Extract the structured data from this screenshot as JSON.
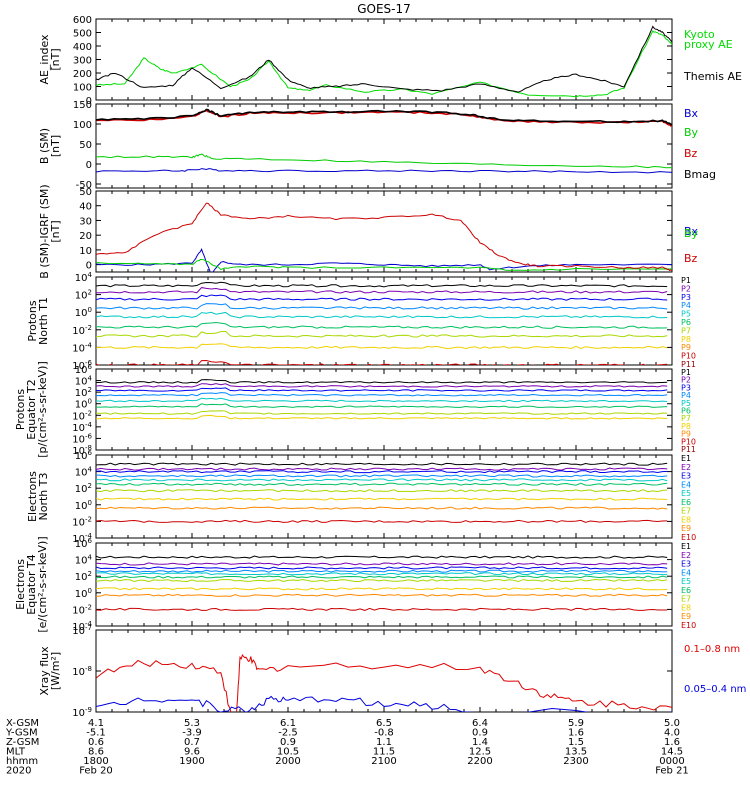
{
  "title": "GOES-17",
  "time_axis": {
    "hhmm_ticks": [
      "1800",
      "1900",
      "2000",
      "2100",
      "2200",
      "2300",
      "0000"
    ],
    "hours": [
      18,
      19,
      20,
      21,
      22,
      23,
      24
    ],
    "date_start": "Feb 20",
    "date_end": "Feb 21",
    "year": "2020",
    "rows": [
      {
        "label": "X-GSM",
        "values": [
          "4.1",
          "5.3",
          "6.1",
          "6.5",
          "6.4",
          "5.9",
          "5.0"
        ]
      },
      {
        "label": "Y-GSM",
        "values": [
          "-5.1",
          "-3.9",
          "-2.5",
          "-0.8",
          "0.9",
          "1.6",
          "4.0"
        ]
      },
      {
        "label": "Z-GSM",
        "values": [
          "0.6",
          "0.7",
          "0.9",
          "1.1",
          "1.4",
          "1.5",
          "1.6"
        ]
      },
      {
        "label": "MLT",
        "values": [
          "8.6",
          "9.6",
          "10.5",
          "11.5",
          "12.5",
          "13.5",
          "14.5"
        ]
      },
      {
        "label": "hhmm",
        "values": [
          "1800",
          "1900",
          "2000",
          "2100",
          "2200",
          "2300",
          "0000"
        ]
      },
      {
        "label": "2020",
        "values": [
          "Feb 20",
          "",
          "",
          "",
          "",
          "",
          "Feb 21"
        ]
      }
    ]
  },
  "chart_data": [
    {
      "type": "line",
      "ylabel": "AE_index [nT]",
      "ylim": [
        0,
        600
      ],
      "yticks": [
        "0",
        "100",
        "200",
        "300",
        "400",
        "500",
        "600"
      ],
      "series": [
        {
          "name": "Kyoto proxy AE",
          "color": "#00dd00",
          "x": [
            18,
            18.3,
            18.5,
            18.67,
            18.8,
            19.1,
            19.4,
            19.6,
            19.8,
            20.0,
            20.2,
            20.4,
            20.8,
            21.2,
            21.5,
            22.0,
            22.5,
            23.0,
            23.3,
            23.5,
            23.8,
            23.9,
            24.0
          ],
          "y": [
            110,
            120,
            310,
            230,
            200,
            260,
            100,
            150,
            290,
            90,
            70,
            110,
            60,
            80,
            45,
            130,
            40,
            30,
            40,
            90,
            510,
            480,
            410
          ]
        },
        {
          "name": "Themis AE",
          "color": "#000000",
          "x": [
            18,
            18.2,
            18.5,
            18.8,
            19.0,
            19.3,
            19.6,
            19.8,
            20.0,
            20.2,
            20.5,
            20.8,
            21.2,
            21.6,
            22.0,
            22.4,
            22.7,
            23.0,
            23.3,
            23.5,
            23.8,
            23.9,
            24.0
          ],
          "y": [
            150,
            200,
            90,
            110,
            240,
            90,
            170,
            300,
            150,
            90,
            100,
            120,
            80,
            70,
            120,
            60,
            150,
            190,
            140,
            100,
            540,
            500,
            430
          ]
        }
      ],
      "legend": [
        "Kyoto",
        "proxy AE",
        "Themis AE"
      ]
    },
    {
      "type": "line",
      "ylabel": "B (SM) [nT]",
      "ylim": [
        -60,
        150
      ],
      "yticks": [
        "-50",
        "0",
        "50",
        "100",
        "150"
      ],
      "series": [
        {
          "name": "Bx",
          "color": "#0000cc",
          "x": [
            18,
            18.6,
            18.9,
            19.1,
            19.3,
            19.8,
            20.6,
            21.5,
            22.3,
            23.0,
            24.0
          ],
          "y": [
            -18,
            -17,
            -17,
            -12,
            -16,
            -17,
            -17,
            -17,
            -18,
            -19,
            -21
          ]
        },
        {
          "name": "By",
          "color": "#00cc00",
          "x": [
            18,
            18.6,
            19.0,
            19.1,
            19.2,
            19.6,
            20.5,
            21.5,
            22.5,
            23.5,
            24.0
          ],
          "y": [
            18,
            18,
            17,
            24,
            14,
            13,
            8,
            2,
            -3,
            -6,
            -9
          ]
        },
        {
          "name": "Bz",
          "color": "#cc0000",
          "x": [
            18,
            18.5,
            19.0,
            19.15,
            19.3,
            19.6,
            20.0,
            20.5,
            21.0,
            21.5,
            21.9,
            22.1,
            22.5,
            23.0,
            23.5,
            23.9,
            24.0
          ],
          "y": [
            110,
            110,
            118,
            134,
            118,
            127,
            128,
            128,
            130,
            128,
            122,
            112,
            106,
            104,
            104,
            106,
            96
          ]
        },
        {
          "name": "Bmag",
          "color": "#000000",
          "x": [
            18,
            18.5,
            19.0,
            19.15,
            19.3,
            19.6,
            20.0,
            20.5,
            21.0,
            21.5,
            21.9,
            22.1,
            22.5,
            23.0,
            23.5,
            23.9,
            24.0
          ],
          "y": [
            112,
            112,
            120,
            136,
            120,
            129,
            130,
            130,
            132,
            130,
            124,
            114,
            108,
            106,
            106,
            108,
            98
          ]
        }
      ],
      "legend": [
        "Bx",
        "By",
        "Bz",
        "Bmag"
      ]
    },
    {
      "type": "line",
      "ylabel": "B (SM)-IGRF (SM) [nT]",
      "ylim": [
        -5,
        50
      ],
      "yticks": [
        "0",
        "10",
        "20",
        "30",
        "40",
        "50"
      ],
      "series": [
        {
          "name": "Bx",
          "color": "#0000cc",
          "x": [
            18,
            18.5,
            19.0,
            19.1,
            19.2,
            19.3,
            19.5,
            20.0,
            20.5,
            21.0,
            21.5,
            22.0,
            22.1,
            22.5,
            23.0,
            24.0
          ],
          "y": [
            0,
            0,
            1,
            10,
            -7,
            2,
            0,
            0,
            1,
            0,
            -1,
            0,
            -3,
            -1,
            0,
            0
          ]
        },
        {
          "name": "By",
          "color": "#00cc00",
          "x": [
            18,
            18.5,
            19.0,
            19.1,
            19.3,
            19.6,
            20.0,
            21.0,
            22.0,
            22.3,
            23.0,
            24.0
          ],
          "y": [
            1,
            1,
            0,
            4,
            -3,
            -1,
            -2,
            -2,
            -2,
            -4,
            -3,
            -3
          ]
        },
        {
          "name": "Bz",
          "color": "#cc0000",
          "x": [
            18,
            18.3,
            18.6,
            19.0,
            19.15,
            19.3,
            19.6,
            20.0,
            20.5,
            21.0,
            21.5,
            21.8,
            22.0,
            22.2,
            22.4,
            22.6,
            23.0,
            23.5,
            23.9,
            24.0
          ],
          "y": [
            7,
            8,
            20,
            28,
            42,
            34,
            31,
            33,
            31,
            32,
            34,
            30,
            15,
            6,
            1,
            -1,
            -1,
            -2,
            -2,
            -4
          ]
        }
      ],
      "legend": [
        "Bx",
        "By",
        "Bz"
      ]
    },
    {
      "type": "line",
      "ylabel": "Protons North T1",
      "yscale": "log",
      "ylim": [
        1e-06,
        10000.0
      ],
      "yticks": [
        "10^4",
        "10^2",
        "10^0",
        "10^-2",
        "10^-4",
        "10^-6"
      ],
      "channels": [
        "P1",
        "P2",
        "P3",
        "P4",
        "P5",
        "P6",
        "P7",
        "P8",
        "P9",
        "P10",
        "P11"
      ],
      "colors": [
        "#000000",
        "#7b00b0",
        "#0000ee",
        "#0088ff",
        "#00c8c8",
        "#00c060",
        "#a8d800",
        "#f0d000",
        "#ff8800",
        "#cc0000",
        "#990000"
      ],
      "levels": [
        1000.0,
        200.0,
        30.0,
        3,
        0.3,
        0.02,
        0.002,
        0.0001,
        null,
        1e-06,
        null
      ],
      "legend": [
        "P1",
        "P2",
        "P3",
        "P4",
        "P5",
        "P6",
        "P7",
        "P8",
        "P9",
        "P10",
        "P11"
      ]
    },
    {
      "type": "line",
      "ylabel": "Protons Equator T2 [p/(cm²-s-sr-keV)]",
      "yscale": "log",
      "ylim": [
        1e-08,
        1000000.0
      ],
      "yticks": [
        "10^6",
        "10^4",
        "10^2",
        "10^0",
        "10^-2",
        "10^-4",
        "10^-6",
        "10^-8"
      ],
      "channels": [
        "P1",
        "P2",
        "P3",
        "P4",
        "P5",
        "P6",
        "P7",
        "P8",
        "P9",
        "P10",
        "P11"
      ],
      "colors": [
        "#000000",
        "#7b00b0",
        "#0000ee",
        "#0088ff",
        "#00c8c8",
        "#00c060",
        "#a8d800",
        "#f0d000",
        "#ff8800",
        "#cc0000",
        "#990000"
      ],
      "levels": [
        5000.0,
        1000.0,
        200.0,
        30.0,
        3,
        0.3,
        0.02,
        0.003,
        null,
        null,
        null
      ],
      "legend": [
        "P1",
        "P2",
        "P3",
        "P4",
        "P5",
        "P6",
        "P7",
        "P8",
        "P9",
        "P10",
        "P11"
      ]
    },
    {
      "type": "line",
      "ylabel": "Electrons North T3",
      "yscale": "log",
      "ylim": [
        0.0001,
        1000000.0
      ],
      "yticks": [
        "10^6",
        "10^4",
        "10^2",
        "10^0",
        "10^-2",
        "10^-4"
      ],
      "channels": [
        "E1",
        "E2",
        "E3",
        "E4",
        "E5",
        "E6",
        "E7",
        "E8",
        "E9",
        "E10"
      ],
      "colors": [
        "#000000",
        "#7b00b0",
        "#0000ee",
        "#0088ff",
        "#00c8c8",
        "#00c060",
        "#a8d800",
        "#f0d000",
        "#ff8800",
        "#cc0000"
      ],
      "levels": [
        80000.0,
        20000.0,
        10000.0,
        3000.0,
        1000.0,
        300.0,
        50.0,
        5,
        0.4,
        0.01
      ],
      "legend": [
        "E1",
        "E2",
        "E3",
        "E4",
        "E5",
        "E6",
        "E7",
        "E8",
        "E9",
        "E10"
      ]
    },
    {
      "type": "line",
      "ylabel": "Electrons Equator T4 [e/(cm²-s-sr-keV)]",
      "yscale": "log",
      "ylim": [
        0.0001,
        1000000.0
      ],
      "yticks": [
        "10^6",
        "10^4",
        "10^2",
        "10^0",
        "10^-2",
        "10^-4"
      ],
      "channels": [
        "E1",
        "E2",
        "E3",
        "E4",
        "E5",
        "E6",
        "E7",
        "E8",
        "E9",
        "E10"
      ],
      "colors": [
        "#000000",
        "#7b00b0",
        "#0000ee",
        "#0088ff",
        "#00c8c8",
        "#00c060",
        "#a8d800",
        "#f0d000",
        "#ff8800",
        "#cc0000"
      ],
      "levels": [
        20000.0,
        3000.0,
        1000.0,
        400.0,
        200.0,
        80.0,
        30.0,
        3,
        0.5,
        0.01
      ],
      "legend": [
        "E1",
        "E2",
        "E3",
        "E4",
        "E5",
        "E6",
        "E7",
        "E8",
        "E9",
        "E10"
      ]
    },
    {
      "type": "line",
      "ylabel": "Xray flux [W/m²]",
      "yscale": "log",
      "ylim": [
        1e-09,
        1e-07
      ],
      "yticks": [
        "10^-7",
        "10^-8",
        "10^-9"
      ],
      "series": [
        {
          "name": "0.1-0.8 nm",
          "color": "#dd0000",
          "x": [
            18,
            18.5,
            19.0,
            19.3,
            19.45,
            19.5,
            19.6,
            19.7,
            20.0,
            21.0,
            22.0,
            22.4,
            22.7,
            23.0,
            23.5,
            24.0
          ],
          "y": [
            8e-09,
            1.6e-08,
            1.4e-08,
            1e-08,
            3e-10,
            2e-08,
            2e-08,
            1e-08,
            1.3e-08,
            1.4e-08,
            1.2e-08,
            5e-09,
            2.5e-09,
            1.8e-09,
            1.5e-09,
            1.3e-09
          ]
        },
        {
          "name": "0.05-0.4 nm",
          "color": "#0000dd",
          "x": [
            18,
            18.5,
            19.0,
            19.3,
            19.6,
            19.8,
            20.0,
            20.5,
            21.0,
            21.5,
            22.0,
            24.0
          ],
          "y": [
            1.2e-09,
            2.2e-09,
            2e-09,
            1.2e-09,
            1.1e-09,
            2.1e-09,
            1.8e-09,
            2.2e-09,
            1.5e-09,
            1.4e-09,
            1e-09,
            1e-09
          ]
        }
      ],
      "legend": [
        "0.1–0.8 nm",
        "0.05–0.4 nm"
      ]
    }
  ]
}
